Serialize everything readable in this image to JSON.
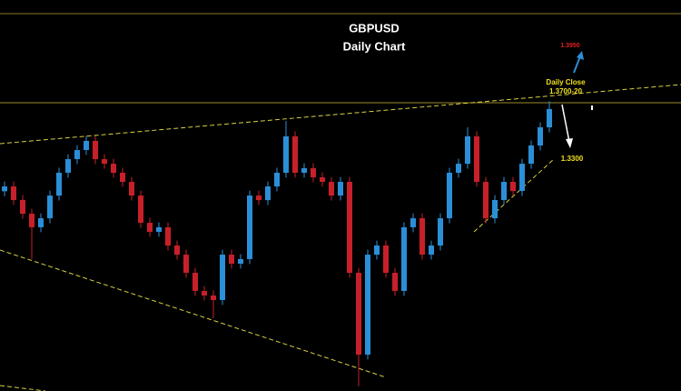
{
  "chart_data": {
    "type": "candlestick",
    "title": "GBPUSD",
    "subtitle": "Daily Chart",
    "annotations": [
      "1.3950",
      "Daily Close",
      "1.3700-20",
      "1.3300"
    ],
    "up_color": "#2b8fd8",
    "down_color": "#c8202a",
    "ylim": [
      1.1371,
      1.454
    ],
    "open": [
      1.299,
      1.3029,
      1.2919,
      1.2808,
      1.2698,
      1.2771,
      1.2955,
      1.314,
      1.325,
      1.3324,
      1.3398,
      1.325,
      1.3213,
      1.314,
      1.3066,
      1.2955,
      1.2734,
      1.2661,
      1.2698,
      1.255,
      1.2476,
      1.2329,
      1.2182,
      1.2145,
      1.2108,
      1.2476,
      1.2403,
      1.244,
      1.2955,
      1.2918,
      1.3029,
      1.314,
      1.3435,
      1.314,
      1.3177,
      1.3103,
      1.3066,
      1.2955,
      1.3066,
      1.2329,
      1.1666,
      1.2476,
      1.255,
      1.2329,
      1.2182,
      1.2698,
      1.2771,
      1.2476,
      1.255,
      1.2771,
      1.314,
      1.3213,
      1.3435,
      1.3066,
      1.2771,
      1.2919,
      1.3066,
      1.2992,
      1.3213,
      1.3361,
      1.3508
    ],
    "high": [
      1.3069,
      1.3069,
      1.2959,
      1.2848,
      1.2811,
      1.2995,
      1.318,
      1.329,
      1.3364,
      1.3438,
      1.3438,
      1.329,
      1.3253,
      1.318,
      1.3106,
      1.2995,
      1.2774,
      1.2738,
      1.2738,
      1.259,
      1.2516,
      1.2369,
      1.2222,
      1.2185,
      1.2516,
      1.2516,
      1.248,
      1.2995,
      1.2995,
      1.3069,
      1.318,
      1.356,
      1.3475,
      1.3217,
      1.3217,
      1.3143,
      1.3106,
      1.3106,
      1.3106,
      1.2369,
      1.2516,
      1.259,
      1.259,
      1.2369,
      1.2738,
      1.2811,
      1.2811,
      1.259,
      1.2811,
      1.318,
      1.3253,
      1.3508,
      1.3475,
      1.3106,
      1.2959,
      1.3106,
      1.3106,
      1.3253,
      1.3401,
      1.3548,
      1.372
    ],
    "low": [
      1.295,
      1.2879,
      1.2768,
      1.244,
      1.2658,
      1.2731,
      1.2915,
      1.31,
      1.321,
      1.3284,
      1.321,
      1.3173,
      1.31,
      1.3026,
      1.2915,
      1.2694,
      1.2621,
      1.2621,
      1.251,
      1.2436,
      1.2289,
      1.2142,
      1.2105,
      1.1961,
      1.2068,
      1.2363,
      1.2363,
      1.24,
      1.2878,
      1.2878,
      1.2989,
      1.31,
      1.31,
      1.31,
      1.3063,
      1.3026,
      1.2915,
      1.2915,
      1.2289,
      1.141,
      1.1626,
      1.2436,
      1.2289,
      1.2142,
      1.2142,
      1.2658,
      1.2436,
      1.2436,
      1.251,
      1.2731,
      1.31,
      1.3173,
      1.3026,
      1.2731,
      1.2731,
      1.2879,
      1.2952,
      1.2952,
      1.3173,
      1.3321,
      1.3468
    ],
    "close": [
      1.3029,
      1.2919,
      1.2808,
      1.2698,
      1.2771,
      1.2955,
      1.314,
      1.325,
      1.3324,
      1.3398,
      1.325,
      1.3213,
      1.314,
      1.3066,
      1.2955,
      1.2734,
      1.2661,
      1.2698,
      1.255,
      1.2476,
      1.2329,
      1.2182,
      1.2145,
      1.2108,
      1.2476,
      1.2403,
      1.244,
      1.2955,
      1.2918,
      1.3029,
      1.314,
      1.3435,
      1.314,
      1.3177,
      1.3103,
      1.3066,
      1.2955,
      1.3066,
      1.2329,
      1.1666,
      1.2476,
      1.255,
      1.2329,
      1.2182,
      1.2698,
      1.2771,
      1.2476,
      1.255,
      1.2771,
      1.314,
      1.3213,
      1.3435,
      1.3066,
      1.2771,
      1.2919,
      1.3066,
      1.2992,
      1.3213,
      1.3361,
      1.3508,
      1.3656
    ]
  }
}
